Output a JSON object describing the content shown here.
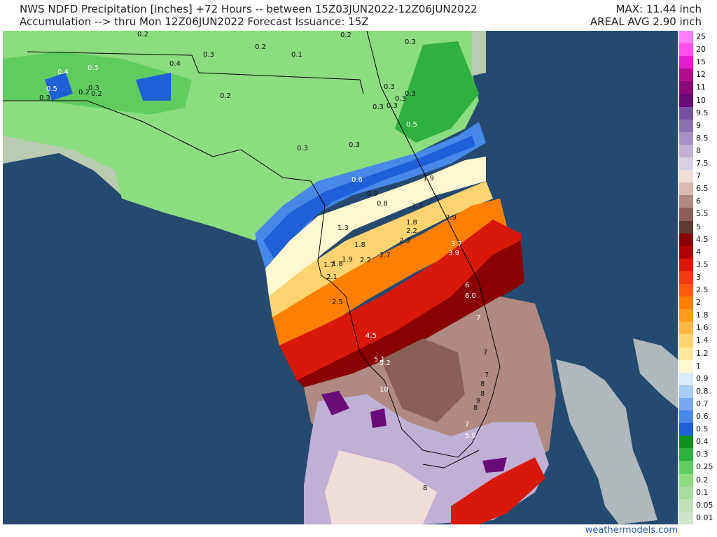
{
  "header": {
    "title_line1": "NWS NDFD Precipitation [inches] +72 Hours -- between 15Z03JUN2022-12Z06JUN2022",
    "title_line2": "Accumulation --> thru Mon 12Z06JUN2022   Forecast Issuance: 15Z",
    "max": "MAX: 11.44 inch",
    "areal_avg": "AREAL AVG 2.90 inch"
  },
  "colors": {
    "ocean": "#244a70",
    "land_outside": "#b9cbb0",
    "border_line": "#000000"
  },
  "legend": {
    "items": [
      {
        "label": "25",
        "color": "#ff80ff"
      },
      {
        "label": "20",
        "color": "#ff50f0"
      },
      {
        "label": "15",
        "color": "#e020d0"
      },
      {
        "label": "12",
        "color": "#b0108f"
      },
      {
        "label": "11",
        "color": "#8a0a7a"
      },
      {
        "label": "10",
        "color": "#6a0a78"
      },
      {
        "label": "9.5",
        "color": "#7850a0"
      },
      {
        "label": "9",
        "color": "#8f70b0"
      },
      {
        "label": "8.5",
        "color": "#a890c4"
      },
      {
        "label": "8",
        "color": "#c0b0d6"
      },
      {
        "label": "7.5",
        "color": "#d8d0e6"
      },
      {
        "label": "7",
        "color": "#f0dcd8"
      },
      {
        "label": "6.5",
        "color": "#d8b8b0"
      },
      {
        "label": "6",
        "color": "#b08a80"
      },
      {
        "label": "5.5",
        "color": "#8a6056"
      },
      {
        "label": "5",
        "color": "#5e3a30"
      },
      {
        "label": "4.5",
        "color": "#8a0000"
      },
      {
        "label": "4",
        "color": "#b00000"
      },
      {
        "label": "3.5",
        "color": "#d81808"
      },
      {
        "label": "3",
        "color": "#f03a10"
      },
      {
        "label": "2.5",
        "color": "#ff5a10"
      },
      {
        "label": "2",
        "color": "#ff8000"
      },
      {
        "label": "1.8",
        "color": "#ff9c20"
      },
      {
        "label": "1.6",
        "color": "#ffb848"
      },
      {
        "label": "1.4",
        "color": "#ffd470"
      },
      {
        "label": "1.2",
        "color": "#ffe89c"
      },
      {
        "label": "1",
        "color": "#fff8d0"
      },
      {
        "label": "0.9",
        "color": "#d8ecff"
      },
      {
        "label": "0.8",
        "color": "#a8ccf8"
      },
      {
        "label": "0.7",
        "color": "#78a8f0"
      },
      {
        "label": "0.6",
        "color": "#4888e8"
      },
      {
        "label": "0.5",
        "color": "#1e60d8"
      },
      {
        "label": "0.4",
        "color": "#109020"
      },
      {
        "label": "0.3",
        "color": "#30b040"
      },
      {
        "label": "0.25",
        "color": "#60cc60"
      },
      {
        "label": "0.2",
        "color": "#8cdc80"
      },
      {
        "label": "0.1",
        "color": "#a8dca0"
      },
      {
        "label": "0.05",
        "color": "#c0e0b8"
      },
      {
        "label": "0.01",
        "color": "#d0e4cc"
      }
    ]
  },
  "map_labels": [
    {
      "text": "0.2",
      "c": "#111"
    },
    {
      "text": "0.2",
      "c": "#111"
    },
    {
      "text": "0.3",
      "c": "#111"
    },
    {
      "text": "0.3",
      "c": "#111"
    },
    {
      "text": "0.2",
      "c": "#111"
    },
    {
      "text": "0.1",
      "c": "#111"
    },
    {
      "text": "0.4",
      "c": "#ffffff"
    },
    {
      "text": "0.5",
      "c": "#ffffff"
    },
    {
      "text": "0.4",
      "c": "#111"
    },
    {
      "text": "0.5",
      "c": "#ffffff"
    },
    {
      "text": "0.3",
      "c": "#111"
    },
    {
      "text": "0.2",
      "c": "#111"
    },
    {
      "text": "0.2",
      "c": "#111"
    },
    {
      "text": "0.3",
      "c": "#111"
    },
    {
      "text": "0.2",
      "c": "#111"
    },
    {
      "text": "0.3",
      "c": "#111"
    },
    {
      "text": "0.3",
      "c": "#111"
    },
    {
      "text": "0.3",
      "c": "#111"
    },
    {
      "text": "0.3",
      "c": "#111"
    },
    {
      "text": "0.3",
      "c": "#111"
    },
    {
      "text": "0.5",
      "c": "#ffffff"
    },
    {
      "text": "0.3",
      "c": "#111"
    },
    {
      "text": "0.3",
      "c": "#111"
    },
    {
      "text": "0.6",
      "c": "#ffffff"
    },
    {
      "text": "0.9",
      "c": "#111"
    },
    {
      "text": "0.8",
      "c": "#111"
    },
    {
      "text": "1.9",
      "c": "#111"
    },
    {
      "text": "1.7",
      "c": "#111"
    },
    {
      "text": "1.3",
      "c": "#111"
    },
    {
      "text": "1.8",
      "c": "#111"
    },
    {
      "text": "2.2",
      "c": "#111"
    },
    {
      "text": "2.9",
      "c": "#111"
    },
    {
      "text": "2.3",
      "c": "#111"
    },
    {
      "text": "1.8",
      "c": "#111"
    },
    {
      "text": "3.7",
      "c": "#ffffff"
    },
    {
      "text": "3.9",
      "c": "#ffffff"
    },
    {
      "text": "2.2",
      "c": "#111"
    },
    {
      "text": "2.7",
      "c": "#111"
    },
    {
      "text": "1.9",
      "c": "#111"
    },
    {
      "text": "1.8",
      "c": "#111"
    },
    {
      "text": "1.7",
      "c": "#111"
    },
    {
      "text": "2.1",
      "c": "#111"
    },
    {
      "text": "2.5",
      "c": "#111"
    },
    {
      "text": "6",
      "c": "#ffffff"
    },
    {
      "text": "6.0",
      "c": "#ffffff"
    },
    {
      "text": "7",
      "c": "#ffffff"
    },
    {
      "text": "4.5",
      "c": "#ffffff"
    },
    {
      "text": "5.1",
      "c": "#ffffff"
    },
    {
      "text": "5.2",
      "c": "#ffffff"
    },
    {
      "text": "7",
      "c": "#111"
    },
    {
      "text": "7",
      "c": "#111"
    },
    {
      "text": "8",
      "c": "#111"
    },
    {
      "text": "10",
      "c": "#ffffff"
    },
    {
      "text": "8",
      "c": "#111"
    },
    {
      "text": "9",
      "c": "#111"
    },
    {
      "text": "8",
      "c": "#111"
    },
    {
      "text": "7",
      "c": "#ffffff"
    },
    {
      "text": "5.9",
      "c": "#ffffff"
    },
    {
      "text": "8",
      "c": "#111"
    }
  ],
  "credit": "weathermodels.com"
}
